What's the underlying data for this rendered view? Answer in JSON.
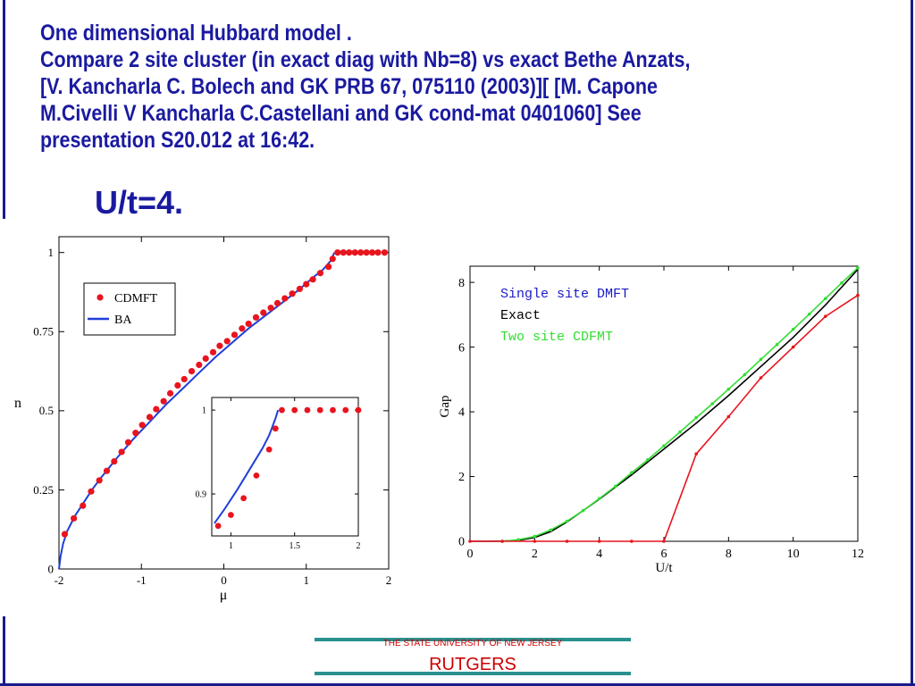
{
  "slide": {
    "title_lines": [
      "One dimensional Hubbard model   .",
      "Compare 2 site cluster (in exact diag with Nb=8) vs exact Bethe Anzats,",
      "[V. Kancharla C. Bolech and GK  PRB 67, 075110 (2003)][ [M. Capone",
      "M.Civelli  V Kancharla C.Castellani and GK  cond-mat 0401060] See",
      "presentation S20.012 at 16:42."
    ],
    "subtitle": "U/t=4.",
    "footer": {
      "university": "THE STATE UNIVERSITY OF NEW JERSEY",
      "name": "RUTGERS"
    }
  },
  "colors": {
    "title": "#1a1aa0",
    "cdmft": "#e8141e",
    "ba": "#1f3fd8",
    "dmft": "#e8141e",
    "exact": "#000000",
    "cdfmt": "#33dd33",
    "footer": "#cc0000",
    "footer_line": "#2a9090"
  },
  "chart_data": [
    {
      "type": "scatter",
      "xlabel": "μ",
      "ylabel": "n",
      "xlim": [
        -2,
        2
      ],
      "ylim": [
        0,
        1.05
      ],
      "xticks": [
        "-2",
        "-1",
        "0",
        "1",
        "2"
      ],
      "yticks": [
        "0",
        "0.25",
        "0.5",
        "0.75",
        "1"
      ],
      "legend_position": "top-left",
      "series": [
        {
          "name": "CDMFT",
          "kind": "markers",
          "x": [
            -1.93,
            -1.82,
            -1.71,
            -1.61,
            -1.51,
            -1.42,
            -1.33,
            -1.24,
            -1.16,
            -1.07,
            -0.99,
            -0.9,
            -0.82,
            -0.73,
            -0.65,
            -0.56,
            -0.48,
            -0.39,
            -0.3,
            -0.22,
            -0.13,
            -0.05,
            0.04,
            0.13,
            0.22,
            0.3,
            0.39,
            0.48,
            0.57,
            0.65,
            0.74,
            0.83,
            0.92,
            1.0,
            1.08,
            1.17,
            1.27,
            1.32,
            1.38,
            1.45,
            1.52,
            1.59,
            1.66,
            1.73,
            1.8,
            1.87,
            1.95
          ],
          "y": [
            0.11,
            0.16,
            0.2,
            0.245,
            0.28,
            0.31,
            0.34,
            0.37,
            0.4,
            0.43,
            0.455,
            0.48,
            0.505,
            0.53,
            0.555,
            0.58,
            0.6,
            0.625,
            0.645,
            0.665,
            0.685,
            0.705,
            0.72,
            0.74,
            0.76,
            0.775,
            0.795,
            0.81,
            0.825,
            0.84,
            0.855,
            0.87,
            0.885,
            0.9,
            0.915,
            0.935,
            0.955,
            0.98,
            1.0,
            1.0,
            1.0,
            1.0,
            1.0,
            1.0,
            1.0,
            1.0,
            1.0
          ]
        },
        {
          "name": "BA",
          "kind": "line",
          "x": [
            -2.0,
            -1.98,
            -1.95,
            -1.9,
            -1.8,
            -1.7,
            -1.6,
            -1.5,
            -1.3,
            -1.1,
            -0.9,
            -0.7,
            -0.5,
            -0.3,
            -0.1,
            0.1,
            0.3,
            0.5,
            0.7,
            0.9,
            1.1,
            1.2,
            1.3,
            1.34
          ],
          "y": [
            0.0,
            0.04,
            0.08,
            0.12,
            0.17,
            0.21,
            0.25,
            0.285,
            0.35,
            0.41,
            0.465,
            0.52,
            0.57,
            0.62,
            0.67,
            0.715,
            0.76,
            0.8,
            0.84,
            0.88,
            0.925,
            0.945,
            0.975,
            1.0
          ]
        }
      ]
    },
    {
      "type": "scatter",
      "role": "inset",
      "xlim": [
        0.85,
        2.0
      ],
      "ylim": [
        0.85,
        1.015
      ],
      "xticks": [
        "1",
        "1.5",
        "2"
      ],
      "yticks": [
        "0.9",
        "1"
      ],
      "series": [
        {
          "name": "CDMFT",
          "kind": "markers",
          "x": [
            0.9,
            1.0,
            1.1,
            1.2,
            1.3,
            1.35,
            1.4,
            1.5,
            1.6,
            1.7,
            1.8,
            1.9,
            2.0
          ],
          "y": [
            0.862,
            0.875,
            0.895,
            0.922,
            0.953,
            0.978,
            1.0,
            1.0,
            1.0,
            1.0,
            1.0,
            1.0,
            1.0
          ]
        },
        {
          "name": "BA",
          "kind": "line",
          "x": [
            0.87,
            0.95,
            1.05,
            1.15,
            1.25,
            1.3,
            1.35,
            1.37
          ],
          "y": [
            0.865,
            0.882,
            0.905,
            0.93,
            0.955,
            0.97,
            0.99,
            1.0
          ]
        }
      ]
    },
    {
      "type": "line",
      "xlabel": "U/t",
      "ylabel": "Gap",
      "xlim": [
        0,
        12
      ],
      "ylim": [
        0,
        8.5
      ],
      "xticks": [
        "0",
        "2",
        "4",
        "6",
        "8",
        "10",
        "12"
      ],
      "yticks": [
        "0",
        "2",
        "4",
        "6",
        "8"
      ],
      "legend_position": "top-left",
      "series": [
        {
          "name": "Single site DMFT",
          "x": [
            0,
            1,
            2,
            3,
            4,
            5,
            6,
            7,
            8,
            9,
            10,
            11,
            12
          ],
          "y": [
            0,
            0,
            0,
            0,
            0,
            0,
            0,
            2.7,
            3.85,
            5.05,
            6.0,
            6.95,
            7.6
          ]
        },
        {
          "name": "Exact",
          "x": [
            0,
            0.5,
            1,
            1.5,
            2,
            2.5,
            3,
            3.5,
            4,
            5,
            6,
            7,
            8,
            9,
            10,
            11,
            12
          ],
          "y": [
            0,
            0,
            0.005,
            0.03,
            0.12,
            0.3,
            0.6,
            0.95,
            1.3,
            2.05,
            2.85,
            3.65,
            4.5,
            5.4,
            6.3,
            7.3,
            8.4
          ]
        },
        {
          "name": "Two site CDFMT",
          "x": [
            1,
            1.5,
            2,
            2.5,
            3,
            3.5,
            4,
            4.5,
            5,
            5.5,
            6,
            6.5,
            7,
            7.5,
            8,
            8.5,
            9,
            9.5,
            10,
            10.5,
            11,
            11.5,
            12
          ],
          "y": [
            0.0,
            0.05,
            0.15,
            0.35,
            0.62,
            0.95,
            1.32,
            1.7,
            2.12,
            2.52,
            2.95,
            3.38,
            3.82,
            4.25,
            4.7,
            5.15,
            5.62,
            6.08,
            6.55,
            7.02,
            7.5,
            7.98,
            8.45
          ]
        }
      ]
    }
  ]
}
